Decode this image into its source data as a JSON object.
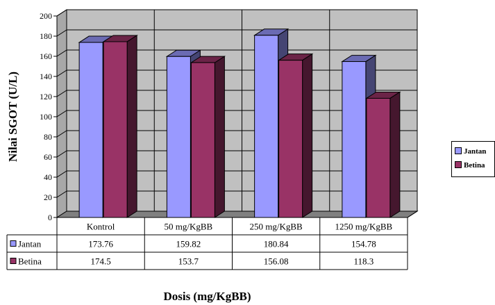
{
  "chart_data": {
    "type": "bar",
    "title": "",
    "xlabel": "Dosis (mg/KgBB)",
    "ylabel": "Nilai SGOT (U/L)",
    "ylim": [
      0,
      200
    ],
    "yticks": [
      "0",
      "20",
      "40",
      "60",
      "80",
      "100",
      "120",
      "140",
      "160",
      "180",
      "200"
    ],
    "categories": [
      "Kontrol",
      "50 mg/KgBB",
      "250 mg/KgBB",
      "1250 mg/KgBB"
    ],
    "series": [
      {
        "name": "Jantan",
        "values": [
          173.76,
          159.82,
          180.84,
          154.78
        ],
        "value_labels": [
          "173.76",
          "159.82",
          "180.84",
          "154.78"
        ],
        "color": "#9999ff"
      },
      {
        "name": "Betina",
        "values": [
          174.5,
          153.7,
          156.08,
          118.3
        ],
        "value_labels": [
          "174.5",
          "153.7",
          "156.08",
          "118.3"
        ],
        "color": "#993366"
      }
    ],
    "grid": true,
    "legend_position": "right",
    "data_table": true,
    "style": "3d-clustered-column",
    "wall_color": "#c0c0c0"
  }
}
